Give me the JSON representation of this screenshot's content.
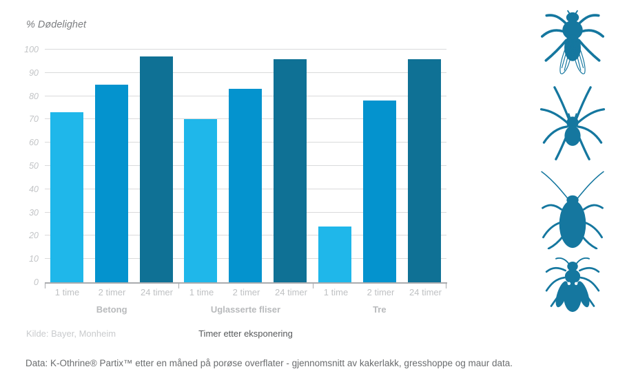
{
  "title": "% Dødelighet",
  "source": "Kilde: Bayer, Monheim",
  "footnote": "Data: K-Othrine® Partix™ etter en måned på porøse overflater - gjennomsnitt av kakerlakk, gresshoppe og maur data.",
  "chart_data": {
    "type": "bar",
    "title": "% Dødelighet",
    "xlabel": "Timer etter eksponering",
    "ylabel": "% Dødelighet",
    "ylim": [
      0,
      100
    ],
    "yticks": [
      0,
      10,
      20,
      30,
      40,
      50,
      60,
      70,
      80,
      90,
      100
    ],
    "grid": true,
    "legend": false,
    "categories": [
      "1 time",
      "2 timer",
      "24 timer"
    ],
    "groups": [
      {
        "label": "Betong",
        "bars": [
          {
            "label": "1 time",
            "value": 73
          },
          {
            "label": "2 timer",
            "value": 85
          },
          {
            "label": "24 timer",
            "value": 97
          }
        ]
      },
      {
        "label": "Uglasserte fliser",
        "bars": [
          {
            "label": "1 time",
            "value": 70
          },
          {
            "label": "2 timer",
            "value": 83
          },
          {
            "label": "24 timer",
            "value": 96
          }
        ]
      },
      {
        "label": "Tre",
        "bars": [
          {
            "label": "1 time",
            "value": 24
          },
          {
            "label": "2 timer",
            "value": 78
          },
          {
            "label": "24 timer",
            "value": 96
          }
        ]
      }
    ],
    "bar_colors": {
      "1 time": "#1fb7ea",
      "2 timer": "#0493ce",
      "24 timer": "#0f7195"
    }
  },
  "colors": {
    "bar_light": "#1fb7ea",
    "bar_medium": "#0493ce",
    "bar_dark": "#0f7195",
    "icon_blue": "#15779f",
    "gridline": "#d9dadb",
    "axis": "#a9abae"
  },
  "icons": [
    {
      "name": "fly"
    },
    {
      "name": "spider"
    },
    {
      "name": "cockroach"
    },
    {
      "name": "wasp"
    }
  ]
}
